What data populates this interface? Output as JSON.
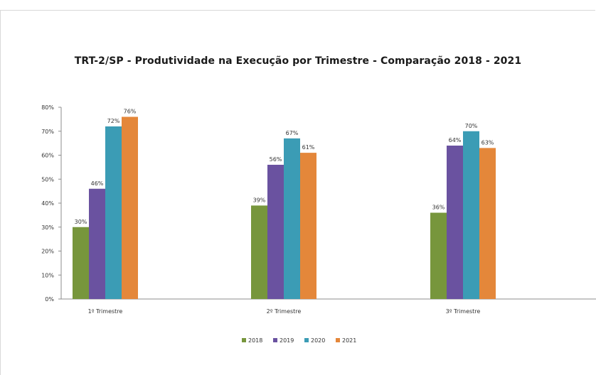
{
  "chart_data": {
    "type": "bar",
    "title": "TRT-2/SP - Produtividade  na Execução por Trimestre - Comparação  2018 - 2021",
    "xlabel": "",
    "ylabel": "",
    "ylim": [
      0,
      80
    ],
    "yticks": [
      "0%",
      "10%",
      "20%",
      "30%",
      "40%",
      "50%",
      "60%",
      "70%",
      "80%"
    ],
    "categories": [
      "1º Trimestre",
      "2º Trimestre",
      "3º Trimestre"
    ],
    "series": [
      {
        "name": "2018",
        "color": "#77963c",
        "values": [
          30,
          39,
          36
        ],
        "labels": [
          "30%",
          "39%",
          "36%"
        ]
      },
      {
        "name": "2019",
        "color": "#6a52a0",
        "values": [
          46,
          56,
          64
        ],
        "labels": [
          "46%",
          "56%",
          "64%"
        ]
      },
      {
        "name": "2020",
        "color": "#3b9cb5",
        "values": [
          72,
          67,
          70
        ],
        "labels": [
          "72%",
          "67%",
          "70%"
        ]
      },
      {
        "name": "2021",
        "color": "#e4873a",
        "values": [
          76,
          61,
          63
        ],
        "labels": [
          "76%",
          "61%",
          "63%"
        ]
      }
    ],
    "grid": false,
    "legend": "bottom"
  }
}
